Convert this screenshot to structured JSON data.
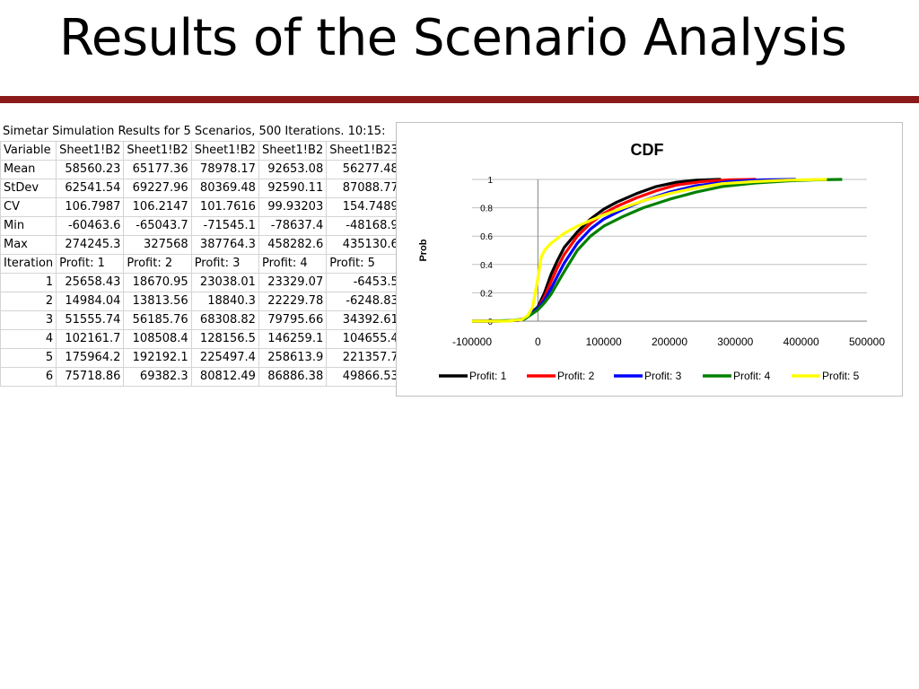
{
  "slide": {
    "title": "Results of the Scenario Analysis"
  },
  "sheet": {
    "caption": "Simetar Simulation Results for 5 Scenarios, 500 Iterations.  10:15:",
    "header_row": [
      "Variable",
      "Sheet1!B2",
      "Sheet1!B2",
      "Sheet1!B2",
      "Sheet1!B2",
      "Sheet1!B23"
    ],
    "stat_rows": [
      {
        "label": "Mean",
        "values": [
          "58560.23",
          "65177.36",
          "78978.17",
          "92653.08",
          "56277.48"
        ]
      },
      {
        "label": "StDev",
        "values": [
          "62541.54",
          "69227.96",
          "80369.48",
          "92590.11",
          "87088.77"
        ]
      },
      {
        "label": "CV",
        "values": [
          "106.7987",
          "106.2147",
          "101.7616",
          "99.93203",
          "154.7489"
        ]
      },
      {
        "label": "Min",
        "values": [
          "-60463.6",
          "-65043.7",
          "-71545.1",
          "-78637.4",
          "-48168.9"
        ]
      },
      {
        "label": "Max",
        "values": [
          "274245.3",
          "327568",
          "387764.3",
          "458282.6",
          "435130.6"
        ]
      }
    ],
    "iteration_header": [
      "Iteration",
      "Profit: 1",
      "Profit: 2",
      "Profit: 3",
      "Profit: 4",
      "Profit: 5"
    ],
    "iteration_rows": [
      {
        "label": "1",
        "values": [
          "25658.43",
          "18670.95",
          "23038.01",
          "23329.07",
          "-6453.5"
        ]
      },
      {
        "label": "2",
        "values": [
          "14984.04",
          "13813.56",
          "18840.3",
          "22229.78",
          "-6248.83"
        ]
      },
      {
        "label": "3",
        "values": [
          "51555.74",
          "56185.76",
          "68308.82",
          "79795.66",
          "34392.61"
        ]
      },
      {
        "label": "4",
        "values": [
          "102161.7",
          "108508.4",
          "128156.5",
          "146259.1",
          "104655.4"
        ]
      },
      {
        "label": "5",
        "values": [
          "175964.2",
          "192192.1",
          "225497.4",
          "258613.9",
          "221357.7"
        ]
      },
      {
        "label": "6",
        "values": [
          "75718.86",
          "69382.3",
          "80812.49",
          "86886.38",
          "49866.53"
        ]
      }
    ]
  },
  "chart_data": {
    "type": "line",
    "title": "CDF",
    "xlabel": "",
    "ylabel": "Prob",
    "xlim": [
      -100000,
      500000
    ],
    "ylim": [
      0,
      1
    ],
    "x_ticks": [
      "-100000",
      "0",
      "100000",
      "200000",
      "300000",
      "400000",
      "500000"
    ],
    "y_ticks": [
      "0",
      "0.2",
      "0.4",
      "0.6",
      "0.8",
      "1"
    ],
    "grid": "horizontal",
    "legend": "bottom",
    "series": [
      {
        "name": "Profit: 1",
        "color": "#000000",
        "x": [
          -60464,
          -30000,
          -20000,
          0,
          10000,
          20000,
          30000,
          40000,
          60000,
          80000,
          100000,
          120000,
          150000,
          180000,
          210000,
          240000,
          274245
        ],
        "y": [
          0,
          0.005,
          0.02,
          0.1,
          0.2,
          0.33,
          0.43,
          0.52,
          0.63,
          0.72,
          0.79,
          0.84,
          0.9,
          0.95,
          0.98,
          0.995,
          1
        ]
      },
      {
        "name": "Profit: 2",
        "color": "#ff0000",
        "x": [
          -65044,
          -30000,
          -20000,
          0,
          10000,
          20000,
          30000,
          40000,
          60000,
          80000,
          100000,
          120000,
          150000,
          180000,
          210000,
          250000,
          290000,
          327568
        ],
        "y": [
          0,
          0.005,
          0.02,
          0.09,
          0.17,
          0.28,
          0.38,
          0.47,
          0.6,
          0.69,
          0.76,
          0.81,
          0.87,
          0.92,
          0.96,
          0.985,
          0.997,
          1
        ]
      },
      {
        "name": "Profit: 3",
        "color": "#0000ff",
        "x": [
          -71545,
          -30000,
          -20000,
          0,
          10000,
          20000,
          30000,
          40000,
          60000,
          80000,
          100000,
          130000,
          160000,
          200000,
          240000,
          290000,
          340000,
          387764
        ],
        "y": [
          0,
          0.005,
          0.02,
          0.09,
          0.15,
          0.23,
          0.32,
          0.41,
          0.55,
          0.65,
          0.72,
          0.79,
          0.85,
          0.91,
          0.955,
          0.985,
          0.997,
          1
        ]
      },
      {
        "name": "Profit: 4",
        "color": "#008000",
        "x": [
          -78637,
          -40000,
          -20000,
          0,
          10000,
          20000,
          30000,
          40000,
          60000,
          80000,
          100000,
          130000,
          160000,
          200000,
          240000,
          280000,
          330000,
          380000,
          420000,
          458283
        ],
        "y": [
          0,
          0.005,
          0.015,
          0.08,
          0.13,
          0.19,
          0.27,
          0.35,
          0.5,
          0.6,
          0.67,
          0.74,
          0.8,
          0.86,
          0.91,
          0.95,
          0.975,
          0.99,
          0.997,
          1
        ]
      },
      {
        "name": "Profit: 5",
        "color": "#ffff00",
        "x": [
          -48169,
          -25000,
          -15000,
          -8000,
          0,
          5000,
          10000,
          20000,
          40000,
          60000,
          80000,
          100000,
          130000,
          160000,
          200000,
          240000,
          280000,
          330000,
          380000,
          435131
        ],
        "y": [
          0,
          0.01,
          0.04,
          0.1,
          0.3,
          0.45,
          0.5,
          0.55,
          0.62,
          0.67,
          0.71,
          0.75,
          0.8,
          0.85,
          0.9,
          0.94,
          0.97,
          0.985,
          0.995,
          1
        ]
      }
    ]
  }
}
